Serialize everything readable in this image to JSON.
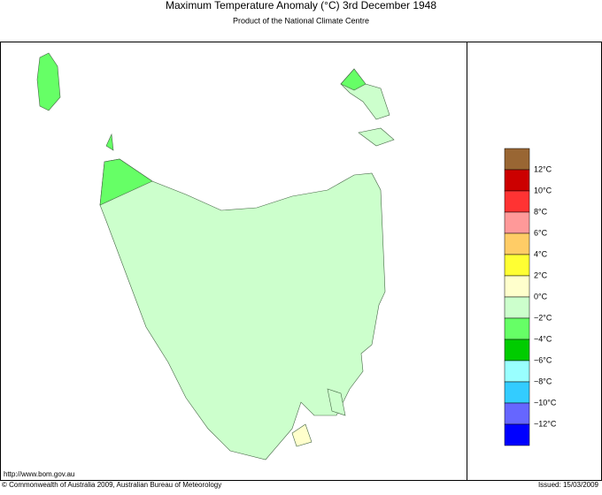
{
  "header": {
    "title": "Maximum Temperature Anomaly (°C)  3rd December 1948",
    "subtitle": "Product of the National Climate Centre"
  },
  "legend": {
    "colors": [
      "#996633",
      "#cc0000",
      "#ff3333",
      "#ff9999",
      "#ffcc66",
      "#ffff33",
      "#ffffcc",
      "#ccffcc",
      "#66ff66",
      "#00cc00",
      "#99ffff",
      "#33ccff",
      "#6666ff",
      "#0000ff"
    ],
    "labels": [
      "12°C",
      "10°C",
      "8°C",
      "6°C",
      "4°C",
      "2°C",
      "0°C",
      "−2°C",
      "−4°C",
      "−6°C",
      "−8°C",
      "−10°C",
      "−12°C"
    ]
  },
  "footer": {
    "url": "http://www.bom.gov.au",
    "copyright": "© Commonwealth of Australia 2009, Australian Bureau of Meteorology",
    "issued": "Issued: 15/03/2009"
  }
}
